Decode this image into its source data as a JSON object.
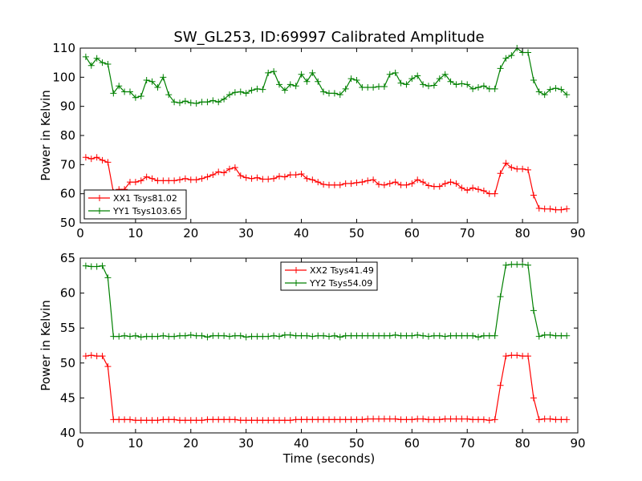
{
  "chart_data": [
    {
      "type": "line",
      "title": "SW_GL253, ID:69997 Calibrated Amplitude",
      "xlabel": "",
      "ylabel": "Power in Kelvin",
      "xlim": [
        0,
        90
      ],
      "ylim": [
        50,
        110
      ],
      "xticks": [
        0,
        10,
        20,
        30,
        40,
        50,
        60,
        70,
        80,
        90
      ],
      "yticks": [
        50,
        60,
        70,
        80,
        90,
        100,
        110
      ],
      "legend_position": "lower-left",
      "x": [
        1,
        2,
        3,
        4,
        5,
        6,
        7,
        8,
        9,
        10,
        11,
        12,
        13,
        14,
        15,
        16,
        17,
        18,
        19,
        20,
        21,
        22,
        23,
        24,
        25,
        26,
        27,
        28,
        29,
        30,
        31,
        32,
        33,
        34,
        35,
        36,
        37,
        38,
        39,
        40,
        41,
        42,
        43,
        44,
        45,
        46,
        47,
        48,
        49,
        50,
        51,
        52,
        53,
        54,
        55,
        56,
        57,
        58,
        59,
        60,
        61,
        62,
        63,
        64,
        65,
        66,
        67,
        68,
        69,
        70,
        71,
        72,
        73,
        74,
        75,
        76,
        77,
        78,
        79,
        80,
        81,
        82,
        83,
        84,
        85,
        86,
        87,
        88
      ],
      "series": [
        {
          "name": "XX1 Tsys81.02",
          "color": "#ff0000",
          "values": [
            72.5,
            72,
            72.5,
            71.5,
            70.8,
            60.5,
            61.5,
            61.5,
            64,
            64,
            64.5,
            65.8,
            65.2,
            64.5,
            64.5,
            64.5,
            64.5,
            64.8,
            65.2,
            64.8,
            64.8,
            65.2,
            65.8,
            66.5,
            67.5,
            67.2,
            68.5,
            69,
            66.2,
            65.5,
            65.2,
            65.5,
            65,
            65,
            65.2,
            66,
            65.8,
            66.5,
            66.5,
            66.8,
            65.2,
            64.8,
            64,
            63.2,
            63,
            63,
            63,
            63.5,
            63.5,
            63.8,
            64,
            64.5,
            64.8,
            63.2,
            63,
            63.5,
            64,
            63,
            63,
            63.5,
            64.8,
            64,
            62.8,
            62.5,
            62.5,
            63.5,
            64,
            63.5,
            62,
            61.2,
            62,
            61.5,
            61,
            60,
            60,
            67,
            70.5,
            69,
            68.5,
            68.5,
            68.2,
            59.5,
            55,
            54.8,
            54.8,
            54.5,
            54.5,
            54.8
          ]
        },
        {
          "name": "YY1 Tsys103.65",
          "color": "#008000",
          "values": [
            107,
            104,
            106.5,
            105,
            104.5,
            94.5,
            97,
            95,
            95,
            93,
            93.5,
            99,
            98.5,
            96.5,
            100,
            94,
            91.5,
            91.2,
            91.8,
            91.2,
            91,
            91.5,
            91.5,
            92,
            91.5,
            92.5,
            94,
            94.8,
            95,
            94.5,
            95.5,
            96,
            95.8,
            101.5,
            102,
            97.5,
            95.5,
            97.5,
            97,
            101,
            98.5,
            101.5,
            98.5,
            95,
            94.5,
            94.5,
            94,
            96,
            99.5,
            99,
            96.5,
            96.5,
            96.5,
            96.8,
            96.8,
            101,
            101.5,
            98,
            97.5,
            99.5,
            100.5,
            97.5,
            97,
            97.2,
            99.5,
            101,
            98.5,
            97.5,
            97.8,
            97.5,
            96,
            96.5,
            97,
            96,
            96,
            103,
            106.5,
            107.5,
            110,
            108.5,
            108.5,
            99,
            95,
            94,
            95.8,
            96.2,
            95.8,
            94
          ]
        }
      ]
    },
    {
      "type": "line",
      "title": "",
      "xlabel": "Time (seconds)",
      "ylabel": "Power in Kelvin",
      "xlim": [
        0,
        90
      ],
      "ylim": [
        40,
        65
      ],
      "xticks": [
        0,
        10,
        20,
        30,
        40,
        50,
        60,
        70,
        80,
        90
      ],
      "yticks": [
        40,
        45,
        50,
        55,
        60,
        65
      ],
      "legend_position": "upper-center",
      "x": [
        1,
        2,
        3,
        4,
        5,
        6,
        7,
        8,
        9,
        10,
        11,
        12,
        13,
        14,
        15,
        16,
        17,
        18,
        19,
        20,
        21,
        22,
        23,
        24,
        25,
        26,
        27,
        28,
        29,
        30,
        31,
        32,
        33,
        34,
        35,
        36,
        37,
        38,
        39,
        40,
        41,
        42,
        43,
        44,
        45,
        46,
        47,
        48,
        49,
        50,
        51,
        52,
        53,
        54,
        55,
        56,
        57,
        58,
        59,
        60,
        61,
        62,
        63,
        64,
        65,
        66,
        67,
        68,
        69,
        70,
        71,
        72,
        73,
        74,
        75,
        76,
        77,
        78,
        79,
        80,
        81,
        82,
        83,
        84,
        85,
        86,
        87,
        88
      ],
      "series": [
        {
          "name": "XX2 Tsys41.49",
          "color": "#ff0000",
          "values": [
            51,
            51.1,
            51,
            51,
            49.5,
            41.9,
            41.9,
            41.9,
            41.9,
            41.8,
            41.8,
            41.8,
            41.8,
            41.8,
            41.9,
            41.9,
            41.9,
            41.8,
            41.8,
            41.8,
            41.8,
            41.8,
            41.9,
            41.9,
            41.9,
            41.9,
            41.9,
            41.9,
            41.8,
            41.8,
            41.8,
            41.8,
            41.8,
            41.8,
            41.8,
            41.8,
            41.8,
            41.8,
            41.9,
            41.9,
            41.9,
            41.9,
            41.9,
            41.9,
            41.9,
            41.9,
            41.9,
            41.9,
            41.9,
            41.9,
            41.9,
            42,
            42,
            42,
            42,
            42,
            42,
            41.9,
            41.9,
            41.9,
            42,
            42,
            41.9,
            41.9,
            41.9,
            42,
            42,
            42,
            42,
            42,
            41.9,
            41.9,
            41.9,
            41.8,
            41.9,
            46.8,
            51,
            51.1,
            51.1,
            51,
            51,
            45,
            41.9,
            42,
            42,
            41.9,
            41.9,
            41.9
          ]
        },
        {
          "name": "YY2 Tsys54.09",
          "color": "#008000",
          "values": [
            63.9,
            63.8,
            63.8,
            63.9,
            62.2,
            53.8,
            53.8,
            53.9,
            53.8,
            53.9,
            53.7,
            53.8,
            53.8,
            53.8,
            53.9,
            53.8,
            53.8,
            53.9,
            53.9,
            54,
            53.9,
            53.9,
            53.7,
            53.9,
            53.9,
            53.9,
            53.8,
            53.9,
            53.9,
            53.7,
            53.8,
            53.8,
            53.8,
            53.8,
            53.9,
            53.8,
            54,
            54,
            53.9,
            53.9,
            53.9,
            53.8,
            53.9,
            53.9,
            53.8,
            53.9,
            53.7,
            53.9,
            53.9,
            53.9,
            53.9,
            53.9,
            53.9,
            53.9,
            53.9,
            53.9,
            54,
            53.9,
            53.9,
            53.9,
            54,
            53.9,
            53.8,
            53.9,
            53.9,
            53.8,
            53.9,
            53.9,
            53.9,
            53.9,
            53.9,
            53.7,
            53.9,
            53.9,
            53.9,
            59.5,
            64,
            64.1,
            64.1,
            64.1,
            64,
            57.5,
            53.8,
            54,
            54,
            53.9,
            53.9,
            53.9
          ]
        }
      ]
    }
  ]
}
